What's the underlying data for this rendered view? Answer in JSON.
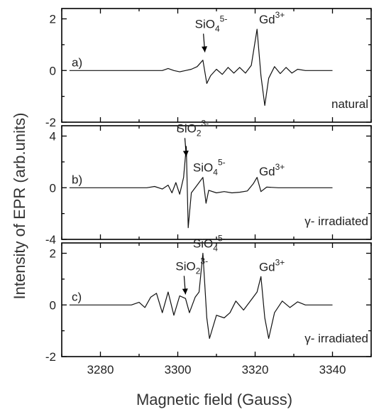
{
  "chart_data": {
    "type": "line",
    "xlabel": "Magnetic field (Gauss)",
    "ylabel": "Intensity of EPR (arb.units)",
    "xlim": [
      3270,
      3350
    ],
    "xticks": [
      3280,
      3300,
      3320,
      3340
    ],
    "xtick_labels": [
      "3280",
      "3300",
      "3320",
      "3340"
    ],
    "panels": [
      {
        "label": "a)",
        "condition": "natural",
        "ylim": [
          -2,
          2.4
        ],
        "yticks": [
          -2,
          0,
          2
        ],
        "ytick_labels": [
          "-2",
          "0",
          "2"
        ],
        "annotations": [
          {
            "base": "SiO",
            "sub": "4",
            "sup": "5-",
            "at": [
              3307,
              0.6
            ],
            "arrow": true
          },
          {
            "base": "Gd",
            "sub": "",
            "sup": "3+",
            "at": [
              3321,
              1.6
            ],
            "arrow": false
          }
        ],
        "series": [
          {
            "x": [
              3272,
              3290,
              3296,
              3297.5,
              3299,
              3300.5,
              3302,
              3303.5,
              3305,
              3306.5,
              3307.5,
              3308.5,
              3310,
              3311.5,
              3313,
              3314.5,
              3316,
              3317.5,
              3319,
              3320.5,
              3321.5,
              3322.5,
              3323.5,
              3325,
              3326.5,
              3328,
              3329.5,
              3331,
              3333,
              3340
            ],
            "y": [
              0,
              0,
              0,
              0.08,
              0,
              -0.05,
              0,
              0.05,
              0.15,
              0.4,
              -0.5,
              -0.2,
              0.05,
              -0.15,
              0.12,
              -0.1,
              0.12,
              -0.1,
              0.2,
              1.6,
              -0.2,
              -1.35,
              -0.3,
              0.15,
              -0.12,
              0.12,
              -0.1,
              0.05,
              0,
              0
            ]
          }
        ]
      },
      {
        "label": "b)",
        "condition": "γ- irradiated",
        "ylim": [
          -4,
          4.8
        ],
        "yticks": [
          -4,
          0,
          4
        ],
        "ytick_labels": [
          "-4",
          "0",
          "4"
        ],
        "annotations": [
          {
            "base": "SiO",
            "sub": "2",
            "sup": "3-",
            "at": [
              3302.2,
              2.2
            ],
            "arrow": true
          },
          {
            "base": "SiO",
            "sub": "4",
            "sup": "5-",
            "at": [
              3306.5,
              0.8
            ],
            "arrow": false
          },
          {
            "base": "Gd",
            "sub": "",
            "sup": "3+",
            "at": [
              3321,
              0.5
            ],
            "arrow": false
          }
        ],
        "series": [
          {
            "x": [
              3272,
              3292,
              3294,
              3296,
              3297.5,
              3298.5,
              3299.5,
              3300.5,
              3301.5,
              3302.2,
              3302.7,
              3303.5,
              3305,
              3306.5,
              3307.3,
              3308,
              3310,
              3312,
              3314,
              3316,
              3318,
              3319.5,
              3320.5,
              3321.5,
              3323,
              3326,
              3340
            ],
            "y": [
              0,
              0,
              0.1,
              -0.1,
              0.2,
              -0.4,
              0.4,
              -0.5,
              0.8,
              3.2,
              -3.1,
              -0.4,
              0.2,
              0.8,
              -1.2,
              -0.2,
              -0.4,
              -0.3,
              -0.4,
              -0.35,
              -0.25,
              0.3,
              0.8,
              -0.3,
              0.05,
              0,
              0
            ]
          }
        ]
      },
      {
        "label": "c)",
        "condition": "γ- irradiated",
        "ylim": [
          -2,
          2.4
        ],
        "yticks": [
          -2,
          0,
          2
        ],
        "ytick_labels": [
          "-2",
          "0",
          "2"
        ],
        "annotations": [
          {
            "base": "SiO",
            "sub": "2",
            "sup": "3-",
            "at": [
              3302,
              0.3
            ],
            "arrow": true
          },
          {
            "base": "SiO",
            "sub": "4",
            "sup": "5-",
            "at": [
              3306.5,
              2.0
            ],
            "arrow": false
          },
          {
            "base": "Gd",
            "sub": "",
            "sup": "3+",
            "at": [
              3321,
              1.1
            ],
            "arrow": false
          }
        ],
        "series": [
          {
            "x": [
              3272,
              3288,
              3290,
              3291.5,
              3293,
              3294.5,
              3296,
              3297.5,
              3299,
              3300.5,
              3302,
              3303,
              3304.5,
              3305.5,
              3306.5,
              3307.5,
              3308.2,
              3310,
              3312,
              3313.5,
              3315,
              3317,
              3319,
              3320.5,
              3321.5,
              3322.5,
              3323.5,
              3325,
              3327,
              3329,
              3331,
              3333,
              3340
            ],
            "y": [
              0,
              0,
              0.1,
              -0.1,
              0.3,
              0.45,
              -0.3,
              0.5,
              -0.4,
              0.35,
              0.25,
              -0.3,
              0.3,
              0.5,
              2.0,
              -0.5,
              -1.3,
              -0.4,
              -0.5,
              -0.3,
              0.15,
              -0.2,
              0.2,
              0.5,
              1.1,
              -0.5,
              -1.3,
              -0.3,
              0.15,
              -0.1,
              0.12,
              0,
              0
            ]
          }
        ]
      }
    ]
  }
}
